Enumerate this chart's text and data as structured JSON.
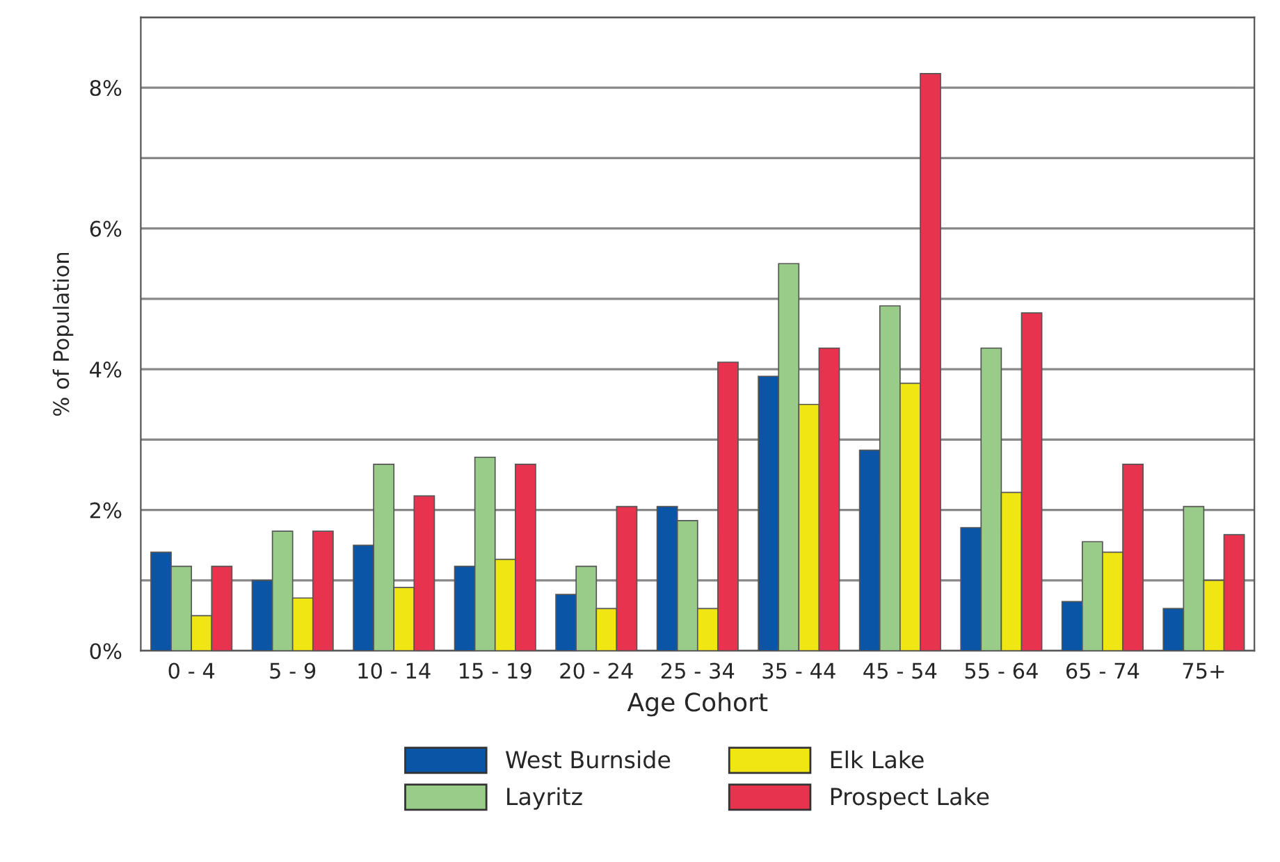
{
  "chart_data": {
    "type": "bar",
    "xlabel": "Age Cohort",
    "ylabel": "% of Population",
    "categories": [
      "0 - 4",
      "5 - 9",
      "10 - 14",
      "15 - 19",
      "20 - 24",
      "25 - 34",
      "35 - 44",
      "45 - 54",
      "55 - 64",
      "65 - 74",
      "75+"
    ],
    "series": [
      {
        "name": "West Burnside",
        "color": "#0a55a5",
        "values": [
          1.4,
          1.0,
          1.5,
          1.2,
          0.8,
          2.05,
          3.9,
          2.85,
          1.75,
          0.7,
          0.6
        ]
      },
      {
        "name": "Layritz",
        "color": "#98cc88",
        "values": [
          1.2,
          1.7,
          2.65,
          2.75,
          1.2,
          1.85,
          5.5,
          4.9,
          4.3,
          1.55,
          2.05
        ]
      },
      {
        "name": "Elk Lake",
        "color": "#f0e614",
        "values": [
          0.5,
          0.75,
          0.9,
          1.3,
          0.6,
          0.6,
          3.5,
          3.8,
          2.25,
          1.4,
          1.0
        ]
      },
      {
        "name": "Prospect Lake",
        "color": "#e8334f",
        "values": [
          1.2,
          1.7,
          2.2,
          2.65,
          2.05,
          4.1,
          4.3,
          8.2,
          4.8,
          2.65,
          1.65
        ]
      }
    ],
    "ylim": [
      0,
      9
    ],
    "yticks": [
      {
        "value": 0,
        "label": "0%"
      },
      {
        "value": 1,
        "label": null
      },
      {
        "value": 2,
        "label": "2%"
      },
      {
        "value": 3,
        "label": null
      },
      {
        "value": 4,
        "label": "4%"
      },
      {
        "value": 5,
        "label": null
      },
      {
        "value": 6,
        "label": "6%"
      },
      {
        "value": 7,
        "label": null
      },
      {
        "value": 8,
        "label": "8%"
      },
      {
        "value": 9,
        "label": null
      }
    ],
    "grid": "y",
    "legend": "bottom"
  }
}
